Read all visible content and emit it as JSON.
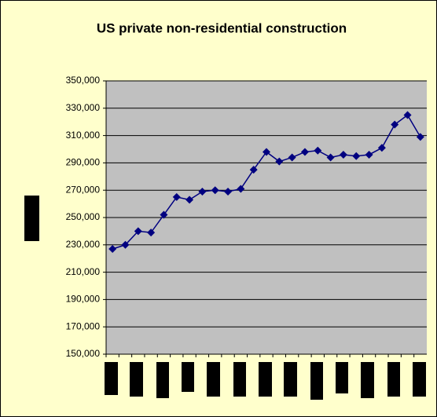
{
  "chart_data": {
    "type": "line",
    "title": "US private non-residential construction",
    "categories": [
      null,
      null,
      null,
      null,
      null,
      null,
      null,
      null,
      null,
      null,
      null,
      null,
      null,
      null,
      null,
      null,
      null,
      null,
      null,
      null,
      null,
      null,
      null,
      null,
      null
    ],
    "series": [
      {
        "color": "#000080",
        "values": [
          227000,
          230000,
          240000,
          239000,
          252000,
          265000,
          263000,
          269000,
          270000,
          269000,
          271000,
          285000,
          298000,
          291000,
          294000,
          298000,
          299000,
          294000,
          296000,
          295000,
          296000,
          301000,
          318000,
          325000,
          309000
        ]
      }
    ],
    "ylim": [
      150000,
      350000
    ],
    "yticks": [
      {
        "value": 150000,
        "label": "150,000"
      },
      {
        "value": 170000,
        "label": "170,000"
      },
      {
        "value": 190000,
        "label": "190,000"
      },
      {
        "value": 210000,
        "label": "210,000"
      },
      {
        "value": 230000,
        "label": "230,000"
      },
      {
        "value": 250000,
        "label": "250,000"
      },
      {
        "value": 270000,
        "label": "270,000"
      },
      {
        "value": 290000,
        "label": "290,000"
      },
      {
        "value": 310000,
        "label": "310,000"
      },
      {
        "value": 330000,
        "label": "330,000"
      },
      {
        "value": 350000,
        "label": "350,000"
      }
    ],
    "grid": true,
    "plot_background": "#c0c0c0",
    "background": "#ffffcc"
  }
}
